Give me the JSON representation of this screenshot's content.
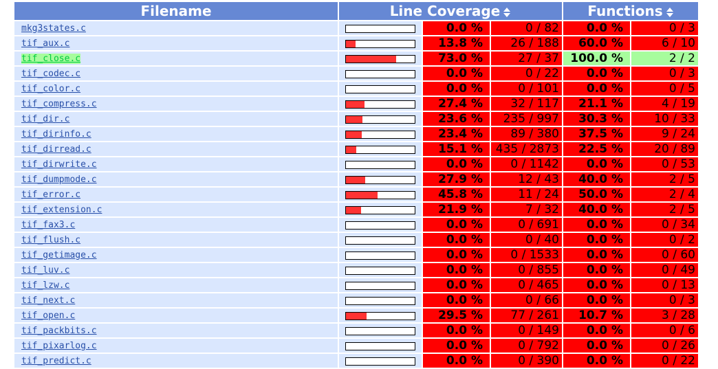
{
  "headers": {
    "filename": "Filename",
    "line_coverage": "Line Coverage",
    "functions": "Functions"
  },
  "colors": {
    "header": "#6688d4",
    "low": "#ff0000",
    "high": "#a7fc9d",
    "row": "#dae7fe",
    "bar": "#ff3333"
  },
  "rows": [
    {
      "file": "mkg3states.c",
      "line_pct": "0.0 %",
      "line_abs": "0 / 82",
      "func_pct": "0.0 %",
      "func_abs": "0 / 3",
      "bar": 0.0,
      "func_high": false
    },
    {
      "file": "tif_aux.c",
      "line_pct": "13.8 %",
      "line_abs": "26 / 188",
      "func_pct": "60.0 %",
      "func_abs": "6 / 10",
      "bar": 13.8,
      "func_high": false
    },
    {
      "file": "tif_close.c",
      "line_pct": "73.0 %",
      "line_abs": "27 / 37",
      "func_pct": "100.0 %",
      "func_abs": "2 / 2",
      "bar": 73.0,
      "func_high": true
    },
    {
      "file": "tif_codec.c",
      "line_pct": "0.0 %",
      "line_abs": "0 / 22",
      "func_pct": "0.0 %",
      "func_abs": "0 / 3",
      "bar": 0.0,
      "func_high": false
    },
    {
      "file": "tif_color.c",
      "line_pct": "0.0 %",
      "line_abs": "0 / 101",
      "func_pct": "0.0 %",
      "func_abs": "0 / 5",
      "bar": 0.0,
      "func_high": false
    },
    {
      "file": "tif_compress.c",
      "line_pct": "27.4 %",
      "line_abs": "32 / 117",
      "func_pct": "21.1 %",
      "func_abs": "4 / 19",
      "bar": 27.4,
      "func_high": false
    },
    {
      "file": "tif_dir.c",
      "line_pct": "23.6 %",
      "line_abs": "235 / 997",
      "func_pct": "30.3 %",
      "func_abs": "10 / 33",
      "bar": 23.6,
      "func_high": false
    },
    {
      "file": "tif_dirinfo.c",
      "line_pct": "23.4 %",
      "line_abs": "89 / 380",
      "func_pct": "37.5 %",
      "func_abs": "9 / 24",
      "bar": 23.4,
      "func_high": false
    },
    {
      "file": "tif_dirread.c",
      "line_pct": "15.1 %",
      "line_abs": "435 / 2873",
      "func_pct": "22.5 %",
      "func_abs": "20 / 89",
      "bar": 15.1,
      "func_high": false
    },
    {
      "file": "tif_dirwrite.c",
      "line_pct": "0.0 %",
      "line_abs": "0 / 1142",
      "func_pct": "0.0 %",
      "func_abs": "0 / 53",
      "bar": 0.0,
      "func_high": false
    },
    {
      "file": "tif_dumpmode.c",
      "line_pct": "27.9 %",
      "line_abs": "12 / 43",
      "func_pct": "40.0 %",
      "func_abs": "2 / 5",
      "bar": 27.9,
      "func_high": false
    },
    {
      "file": "tif_error.c",
      "line_pct": "45.8 %",
      "line_abs": "11 / 24",
      "func_pct": "50.0 %",
      "func_abs": "2 / 4",
      "bar": 45.8,
      "func_high": false
    },
    {
      "file": "tif_extension.c",
      "line_pct": "21.9 %",
      "line_abs": "7 / 32",
      "func_pct": "40.0 %",
      "func_abs": "2 / 5",
      "bar": 21.9,
      "func_high": false
    },
    {
      "file": "tif_fax3.c",
      "line_pct": "0.0 %",
      "line_abs": "0 / 691",
      "func_pct": "0.0 %",
      "func_abs": "0 / 34",
      "bar": 0.0,
      "func_high": false
    },
    {
      "file": "tif_flush.c",
      "line_pct": "0.0 %",
      "line_abs": "0 / 40",
      "func_pct": "0.0 %",
      "func_abs": "0 / 2",
      "bar": 0.0,
      "func_high": false
    },
    {
      "file": "tif_getimage.c",
      "line_pct": "0.0 %",
      "line_abs": "0 / 1533",
      "func_pct": "0.0 %",
      "func_abs": "0 / 60",
      "bar": 0.0,
      "func_high": false
    },
    {
      "file": "tif_luv.c",
      "line_pct": "0.0 %",
      "line_abs": "0 / 855",
      "func_pct": "0.0 %",
      "func_abs": "0 / 49",
      "bar": 0.0,
      "func_high": false
    },
    {
      "file": "tif_lzw.c",
      "line_pct": "0.0 %",
      "line_abs": "0 / 465",
      "func_pct": "0.0 %",
      "func_abs": "0 / 13",
      "bar": 0.0,
      "func_high": false
    },
    {
      "file": "tif_next.c",
      "line_pct": "0.0 %",
      "line_abs": "0 / 66",
      "func_pct": "0.0 %",
      "func_abs": "0 / 3",
      "bar": 0.0,
      "func_high": false
    },
    {
      "file": "tif_open.c",
      "line_pct": "29.5 %",
      "line_abs": "77 / 261",
      "func_pct": "10.7 %",
      "func_abs": "3 / 28",
      "bar": 29.5,
      "func_high": false
    },
    {
      "file": "tif_packbits.c",
      "line_pct": "0.0 %",
      "line_abs": "0 / 149",
      "func_pct": "0.0 %",
      "func_abs": "0 / 6",
      "bar": 0.0,
      "func_high": false
    },
    {
      "file": "tif_pixarlog.c",
      "line_pct": "0.0 %",
      "line_abs": "0 / 792",
      "func_pct": "0.0 %",
      "func_abs": "0 / 26",
      "bar": 0.0,
      "func_high": false
    },
    {
      "file": "tif_predict.c",
      "line_pct": "0.0 %",
      "line_abs": "0 / 390",
      "func_pct": "0.0 %",
      "func_abs": "0 / 22",
      "bar": 0.0,
      "func_high": false
    }
  ]
}
